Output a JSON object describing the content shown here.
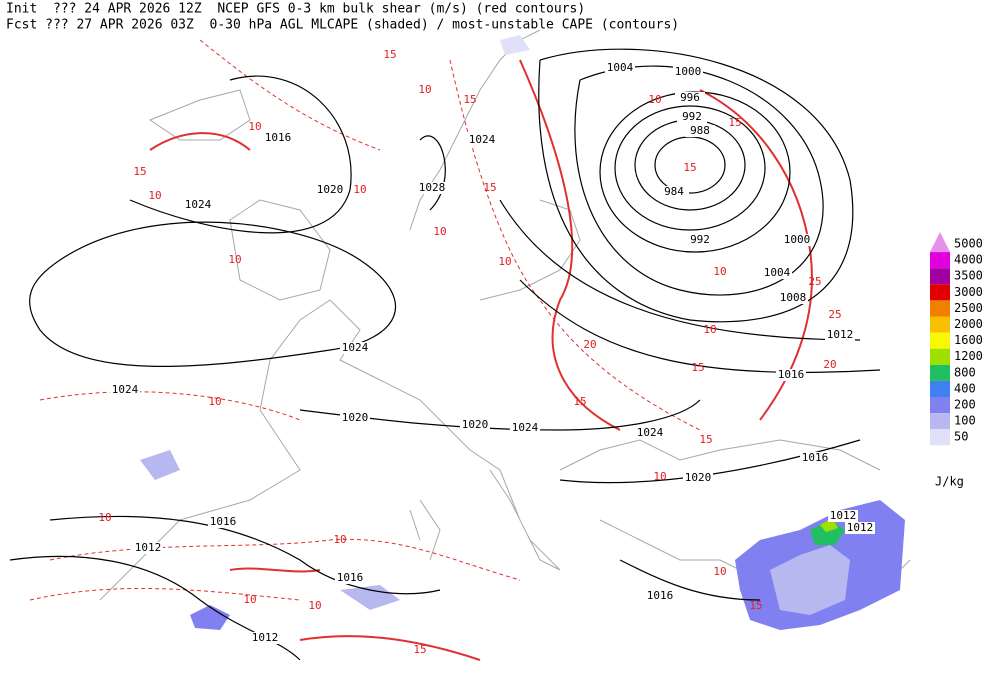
{
  "header": {
    "line1": "Init  ??? 24 APR 2026 12Z  NCEP GFS 0-3 km bulk shear (m/s) (red contours)",
    "line2": "Fcst ??? 27 APR 2026 03Z  0-30 hPa AGL MLCAPE (shaded) / most-unstable CAPE (contours)"
  },
  "isobar_labels": [
    1004,
    1000,
    996,
    992,
    988,
    984,
    992,
    1000,
    1004,
    1008,
    1012,
    1016,
    1020,
    1024,
    1024,
    1028,
    1024,
    1024,
    1016,
    1020,
    1020,
    1024,
    1024,
    1016,
    1020,
    1016,
    1012,
    1016,
    1012,
    1016,
    1012,
    1012
  ],
  "shear_labels": [
    15,
    10,
    10,
    15,
    10,
    10,
    10,
    15,
    10,
    15,
    10,
    10,
    15,
    15,
    10,
    25,
    25,
    20,
    10,
    15,
    20,
    15,
    10,
    10,
    15,
    10,
    10,
    10,
    10,
    15,
    10,
    15
  ],
  "colorbar": {
    "levels": [
      5000,
      4000,
      3500,
      3000,
      2500,
      2000,
      1600,
      1200,
      800,
      400,
      200,
      100,
      50
    ],
    "colors": [
      "#e890e8",
      "#e000e0",
      "#a000a0",
      "#e00000",
      "#f08000",
      "#f8c000",
      "#f8f800",
      "#a0e000",
      "#20c060",
      "#4080f0",
      "#8080f0",
      "#b8b8f0",
      "#e0e0f8"
    ],
    "unit": "J/kg"
  }
}
